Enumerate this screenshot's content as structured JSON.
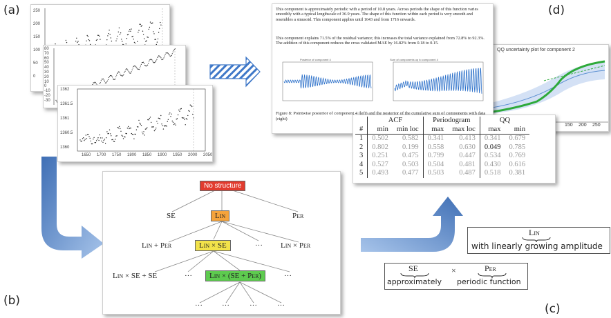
{
  "labels": {
    "a": "(a)",
    "b": "(b)",
    "c": "(c)",
    "d": "(d)"
  },
  "plots": {
    "plot3_yticks": [
      "1362",
      "1361.5",
      "1361",
      "1360.5",
      "1360"
    ],
    "plot3_xticks": [
      "1650",
      "1700",
      "1750",
      "1800",
      "1850",
      "1900",
      "1950",
      "2000",
      "2050"
    ],
    "plot1_yticks": [
      "250",
      "200",
      "150",
      "100",
      "50",
      "0"
    ],
    "plot2_yticks": [
      "80",
      "70",
      "60",
      "50",
      "40",
      "30",
      "20",
      "10",
      "0",
      "-10",
      "-20",
      "-30"
    ]
  },
  "tree": {
    "root": "No structure",
    "level1": {
      "left": "SE",
      "mid": "Lin",
      "right": "Per"
    },
    "level2": {
      "left": "Lin + Per",
      "mid": "Lin × SE",
      "dots": "···",
      "right": "Lin × Per"
    },
    "level3": {
      "left": "Lin × SE + SE",
      "dots_left": "···",
      "mid": "Lin × (SE + Per)",
      "dots_right": "···"
    },
    "level4": {
      "d1": "···",
      "d2": "···",
      "d3": "···",
      "d4": "···"
    }
  },
  "report": {
    "para1": "This component is approximately periodic with a period of 10.8 years. Across periods the shape of this function varies smoothly with a typical lengthscale of 36.9 years. The shape of this function within each period is very smooth and resembles a sinusoid. This component applies until 1643 and from 1716 onwards.",
    "para2": "This component explains 71.5% of the residual variance; this increases the total variance explained from 72.8% to 92.3%. The addition of this component reduces the cross validated MAE by 16.82% from 0.18 to 0.15.",
    "mini_left_title": "Posterior of component 4",
    "mini_right_title": "Sum of components up to component 4",
    "caption": "Figure 8: Pointwise posterior of component 4 (left) and the posterior of the cumulative sum of components with data (right)",
    "qq_title": "QQ uncertainty plot for component 2",
    "qq_xticks": [
      "150",
      "200",
      "250"
    ]
  },
  "table": {
    "group_headers": [
      "ACF",
      "Periodogram",
      "QQ"
    ],
    "col_headers": [
      "#",
      "min",
      "min loc",
      "max",
      "max loc",
      "max",
      "min"
    ],
    "rows": [
      [
        "1",
        "0.502",
        "0.582",
        "0.341",
        "0.413",
        "0.341",
        "0.679"
      ],
      [
        "2",
        "0.802",
        "0.199",
        "0.558",
        "0.630",
        "0.049",
        "0.785"
      ],
      [
        "3",
        "0.251",
        "0.475",
        "0.799",
        "0.447",
        "0.534",
        "0.769"
      ],
      [
        "4",
        "0.527",
        "0.503",
        "0.504",
        "0.481",
        "0.430",
        "0.616"
      ],
      [
        "5",
        "0.493",
        "0.477",
        "0.503",
        "0.487",
        "0.518",
        "0.381"
      ]
    ]
  },
  "descriptions": {
    "lin_over": "Lin",
    "lin_under": "with linearly growing amplitude",
    "se_over": "SE",
    "times": "×",
    "per_over": "Per",
    "se_under": "approximately",
    "per_under": "periodic function"
  },
  "colors": {
    "root_box": "#e23b2e",
    "lin_box": "#f5a33b",
    "linse_box": "#f2e24a",
    "final_box": "#5ecb4f",
    "arrow_blue": "#5b8fd1",
    "qq_green": "#2eaa3a",
    "qq_blue": "#5b8fd1"
  }
}
